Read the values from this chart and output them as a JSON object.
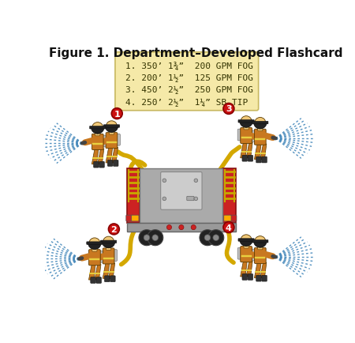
{
  "title": "Figure 1. Department–Developed Flashcard",
  "title_fontsize": 11,
  "flashcard_lines": [
    "1. 350’ 1¾”  200 GPM FOG",
    "2. 200’ 1½”  125 GPM FOG",
    "3. 450’ 2½”  250 GPM FOG",
    "4. 250’ 2½”  1¼” SB TIP"
  ],
  "flashcard_bg": "#f5e9a8",
  "flashcard_border": "#c8b860",
  "number_bg": "#cc1111",
  "number_color": "#ffffff",
  "hose_color": "#d4a800",
  "spray_color": "#4488bb",
  "background": "#ffffff",
  "ff_orange": "#c87820",
  "ff_dark": "#5a3a00",
  "ff_skin": "#f0c878",
  "ff_helmet": "#222222",
  "ff_tank": "#c0c0c0",
  "ff_stripe": "#e8d040",
  "truck_red": "#cc2222",
  "truck_silver": "#aaaaaa",
  "truck_gray": "#888888",
  "truck_light_gray": "#cccccc",
  "truck_yellow": "#c8a800",
  "truck_black": "#222222",
  "truck_bumper": "#999999"
}
